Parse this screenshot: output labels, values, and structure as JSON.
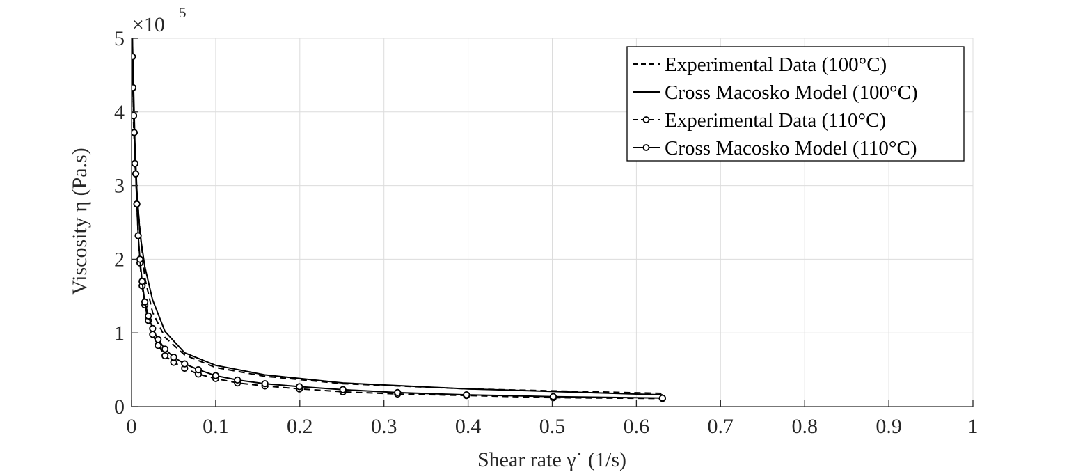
{
  "chart_data": {
    "type": "line",
    "title": "",
    "xlabel": "Shear rate γ˙ (1/s)",
    "ylabel": "Viscosity η (Pa.s)",
    "xlim": [
      0,
      1
    ],
    "ylim": [
      0,
      5
    ],
    "y_scale_multiplier": "×10",
    "y_scale_exponent": "5",
    "xticks": [
      "0",
      "0.1",
      "0.2",
      "0.3",
      "0.4",
      "0.5",
      "0.6",
      "0.7",
      "0.8",
      "0.9",
      "1"
    ],
    "yticks": [
      "0",
      "1",
      "2",
      "3",
      "4",
      "5"
    ],
    "grid": true,
    "legend_position": "top-right",
    "series": [
      {
        "name": "Experimental Data (100°C)",
        "line": "dashed",
        "marker": "none",
        "color": "#000000",
        "points": [
          [
            0.001,
            5.0
          ],
          [
            0.0016,
            4.4
          ],
          [
            0.0025,
            3.8
          ],
          [
            0.004,
            3.4
          ],
          [
            0.0063,
            2.9
          ],
          [
            0.01,
            2.4
          ],
          [
            0.0158,
            1.75
          ],
          [
            0.025,
            1.28
          ],
          [
            0.0398,
            0.94
          ],
          [
            0.0631,
            0.7
          ],
          [
            0.1,
            0.53
          ],
          [
            0.1585,
            0.41
          ],
          [
            0.2512,
            0.31
          ],
          [
            0.3981,
            0.24
          ],
          [
            0.631,
            0.18
          ]
        ]
      },
      {
        "name": "Cross Macosko Model (100°C)",
        "line": "solid",
        "marker": "none",
        "color": "#000000",
        "points": [
          [
            0.001,
            5.0
          ],
          [
            0.0016,
            4.75
          ],
          [
            0.0025,
            4.3
          ],
          [
            0.004,
            3.6
          ],
          [
            0.0063,
            2.95
          ],
          [
            0.01,
            2.35
          ],
          [
            0.0158,
            1.9
          ],
          [
            0.025,
            1.45
          ],
          [
            0.0398,
            1.02
          ],
          [
            0.0631,
            0.73
          ],
          [
            0.1,
            0.56
          ],
          [
            0.1585,
            0.43
          ],
          [
            0.2512,
            0.32
          ],
          [
            0.3981,
            0.24
          ],
          [
            0.631,
            0.16
          ]
        ]
      },
      {
        "name": "Experimental Data (110°C)",
        "line": "dashed",
        "marker": "circle",
        "color": "#000000",
        "points": [
          [
            0.001,
            4.75
          ],
          [
            0.0016,
            4.33
          ],
          [
            0.0025,
            3.95
          ],
          [
            0.0032,
            3.72
          ],
          [
            0.004,
            3.3
          ],
          [
            0.005,
            3.16
          ],
          [
            0.0063,
            2.75
          ],
          [
            0.0079,
            2.32
          ],
          [
            0.01,
            1.95
          ],
          [
            0.0126,
            1.64
          ],
          [
            0.0158,
            1.38
          ],
          [
            0.02,
            1.17
          ],
          [
            0.0251,
            0.98
          ],
          [
            0.0316,
            0.83
          ],
          [
            0.0398,
            0.69
          ],
          [
            0.0501,
            0.6
          ],
          [
            0.0631,
            0.52
          ],
          [
            0.0794,
            0.44
          ],
          [
            0.1,
            0.38
          ],
          [
            0.1259,
            0.32
          ],
          [
            0.1585,
            0.28
          ],
          [
            0.1995,
            0.24
          ],
          [
            0.2512,
            0.2
          ],
          [
            0.3162,
            0.17
          ],
          [
            0.3981,
            0.15
          ],
          [
            0.5012,
            0.12
          ],
          [
            0.631,
            0.11
          ]
        ]
      },
      {
        "name": "Cross Macosko Model (110°C)",
        "line": "solid",
        "marker": "circle",
        "color": "#000000",
        "points": [
          [
            0.001,
            4.75
          ],
          [
            0.0016,
            4.33
          ],
          [
            0.0025,
            3.95
          ],
          [
            0.0032,
            3.72
          ],
          [
            0.004,
            3.3
          ],
          [
            0.005,
            3.16
          ],
          [
            0.0063,
            2.75
          ],
          [
            0.0079,
            2.32
          ],
          [
            0.01,
            2.0
          ],
          [
            0.0126,
            1.7
          ],
          [
            0.0158,
            1.42
          ],
          [
            0.02,
            1.23
          ],
          [
            0.0251,
            1.06
          ],
          [
            0.0316,
            0.91
          ],
          [
            0.0398,
            0.78
          ],
          [
            0.0501,
            0.67
          ],
          [
            0.0631,
            0.58
          ],
          [
            0.0794,
            0.5
          ],
          [
            0.1,
            0.42
          ],
          [
            0.1259,
            0.36
          ],
          [
            0.1585,
            0.31
          ],
          [
            0.1995,
            0.27
          ],
          [
            0.2512,
            0.23
          ],
          [
            0.3162,
            0.19
          ],
          [
            0.3981,
            0.16
          ],
          [
            0.5012,
            0.135
          ],
          [
            0.631,
            0.115
          ]
        ]
      }
    ]
  }
}
